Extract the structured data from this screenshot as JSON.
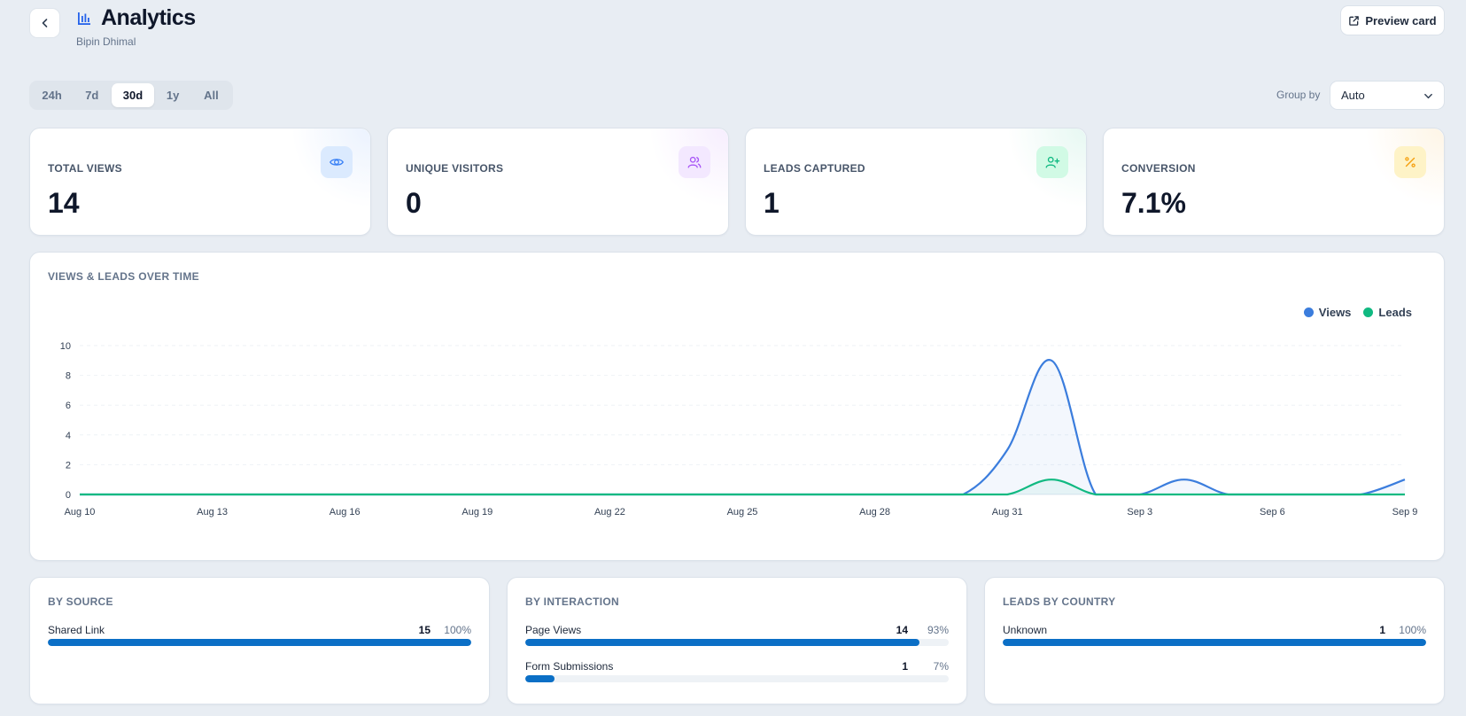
{
  "header": {
    "title": "Analytics",
    "subtitle": "Bipin Dhimal",
    "preview_label": "Preview card"
  },
  "range_tabs": [
    {
      "label": "24h",
      "active": false
    },
    {
      "label": "7d",
      "active": false
    },
    {
      "label": "30d",
      "active": true
    },
    {
      "label": "1y",
      "active": false
    },
    {
      "label": "All",
      "active": false
    }
  ],
  "group_by": {
    "label": "Group by",
    "value": "Auto"
  },
  "stats": [
    {
      "label": "TOTAL VIEWS",
      "value": "14",
      "icon": "eye-icon",
      "color": "#3b82f6"
    },
    {
      "label": "UNIQUE VISITORS",
      "value": "0",
      "icon": "users-icon",
      "color": "#a855f7"
    },
    {
      "label": "LEADS CAPTURED",
      "value": "1",
      "icon": "user-plus-icon",
      "color": "#10b981"
    },
    {
      "label": "CONVERSION",
      "value": "7.1%",
      "icon": "percent-icon",
      "color": "#f59e0b"
    }
  ],
  "chart_section": {
    "title": "VIEWS & LEADS OVER TIME"
  },
  "chart_data": {
    "type": "line",
    "title": "VIEWS & LEADS OVER TIME",
    "x_tick_labels": [
      "Aug 10",
      "Aug 13",
      "Aug 16",
      "Aug 19",
      "Aug 22",
      "Aug 25",
      "Aug 28",
      "Aug 31",
      "Sep 3",
      "Sep 6",
      "Sep 9"
    ],
    "y_ticks": [
      0,
      2,
      4,
      6,
      8,
      10
    ],
    "ylim": [
      0,
      10
    ],
    "x": [
      "Aug 10",
      "Aug 11",
      "Aug 12",
      "Aug 13",
      "Aug 14",
      "Aug 15",
      "Aug 16",
      "Aug 17",
      "Aug 18",
      "Aug 19",
      "Aug 20",
      "Aug 21",
      "Aug 22",
      "Aug 23",
      "Aug 24",
      "Aug 25",
      "Aug 26",
      "Aug 27",
      "Aug 28",
      "Aug 29",
      "Aug 30",
      "Aug 31",
      "Sep 1",
      "Sep 2",
      "Sep 3",
      "Sep 4",
      "Sep 5",
      "Sep 6",
      "Sep 7",
      "Sep 8",
      "Sep 9"
    ],
    "series": [
      {
        "name": "Views",
        "color": "#3b7ddd",
        "values": [
          0,
          0,
          0,
          0,
          0,
          0,
          0,
          0,
          0,
          0,
          0,
          0,
          0,
          0,
          0,
          0,
          0,
          0,
          0,
          0,
          0,
          3,
          9,
          0,
          0,
          1,
          0,
          0,
          0,
          0,
          1
        ]
      },
      {
        "name": "Leads",
        "color": "#10b981",
        "values": [
          0,
          0,
          0,
          0,
          0,
          0,
          0,
          0,
          0,
          0,
          0,
          0,
          0,
          0,
          0,
          0,
          0,
          0,
          0,
          0,
          0,
          0,
          1,
          0,
          0,
          0,
          0,
          0,
          0,
          0,
          0
        ]
      }
    ],
    "grid": true,
    "legend": "top-right"
  },
  "by_source": {
    "title": "BY SOURCE",
    "rows": [
      {
        "name": "Shared Link",
        "count": "15",
        "pct": "100%",
        "fraction": 1.0
      }
    ]
  },
  "by_interaction": {
    "title": "BY INTERACTION",
    "rows": [
      {
        "name": "Page Views",
        "count": "14",
        "pct": "93%",
        "fraction": 0.93
      },
      {
        "name": "Form Submissions",
        "count": "1",
        "pct": "7%",
        "fraction": 0.07
      }
    ]
  },
  "by_country": {
    "title": "LEADS BY COUNTRY",
    "rows": [
      {
        "name": "Unknown",
        "count": "1",
        "pct": "100%",
        "fraction": 1.0
      }
    ]
  },
  "bar_color": "#0b6fc6"
}
